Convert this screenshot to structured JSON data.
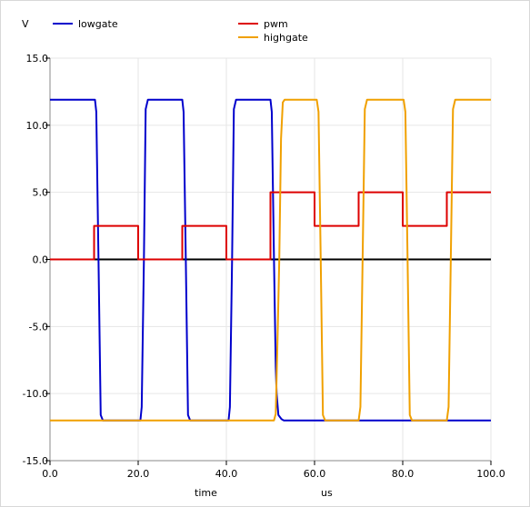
{
  "chart_data": {
    "type": "line",
    "title": "",
    "ylabel": "V",
    "xlabel": "time",
    "xunit": "us",
    "xlim": [
      0,
      100
    ],
    "ylim": [
      -15,
      15
    ],
    "xticks": [
      "0.0",
      "20.0",
      "40.0",
      "60.0",
      "80.0",
      "100.0"
    ],
    "yticks": [
      "15.0",
      "10.0",
      "5.0",
      "0.0",
      "-5.0",
      "-10.0",
      "-15.0"
    ],
    "xtick_values": [
      0,
      20,
      40,
      60,
      80,
      100
    ],
    "ytick_values": [
      15,
      10,
      5,
      0,
      -5,
      -10,
      -15
    ],
    "grid": true,
    "legend_placement": "top",
    "zero_line": true,
    "series": [
      {
        "name": "lowgate",
        "color": "#0000cc",
        "points": [
          [
            0,
            11.9
          ],
          [
            10.2,
            11.9
          ],
          [
            10.5,
            11
          ],
          [
            11,
            0
          ],
          [
            11.5,
            -11.6
          ],
          [
            12,
            -12
          ],
          [
            13.5,
            -12
          ],
          [
            14.2,
            -12
          ],
          [
            20.5,
            -12
          ],
          [
            20.8,
            -11
          ],
          [
            21.3,
            0
          ],
          [
            21.7,
            11.2
          ],
          [
            22.2,
            11.9
          ],
          [
            30,
            11.9
          ],
          [
            30.3,
            11
          ],
          [
            30.8,
            0
          ],
          [
            31.3,
            -11.6
          ],
          [
            31.8,
            -12
          ],
          [
            33,
            -12
          ],
          [
            40.5,
            -12
          ],
          [
            40.8,
            -11
          ],
          [
            41.3,
            0
          ],
          [
            41.7,
            11.2
          ],
          [
            42.2,
            11.9
          ],
          [
            50,
            11.9
          ],
          [
            50.3,
            11
          ],
          [
            50.8,
            0
          ],
          [
            51.2,
            -8
          ],
          [
            51.4,
            -10
          ],
          [
            51.8,
            -11.6
          ],
          [
            52.5,
            -11.9
          ],
          [
            53,
            -12
          ],
          [
            100,
            -12
          ]
        ]
      },
      {
        "name": "pwm",
        "color": "#dd0000",
        "points": [
          [
            0,
            0
          ],
          [
            10,
            0
          ],
          [
            10,
            2.5
          ],
          [
            20,
            2.5
          ],
          [
            20,
            0
          ],
          [
            30,
            0
          ],
          [
            30,
            2.5
          ],
          [
            40,
            2.5
          ],
          [
            40,
            0
          ],
          [
            50,
            0
          ],
          [
            50,
            5
          ],
          [
            60,
            5
          ],
          [
            60,
            2.5
          ],
          [
            70,
            2.5
          ],
          [
            70,
            5
          ],
          [
            80,
            5
          ],
          [
            80,
            2.5
          ],
          [
            90,
            2.5
          ],
          [
            90,
            5
          ],
          [
            100,
            5
          ]
        ]
      },
      {
        "name": "highgate",
        "color": "#f0a000",
        "points": [
          [
            0,
            -12
          ],
          [
            50.8,
            -12
          ],
          [
            51.2,
            -11.5
          ],
          [
            51.6,
            -6
          ],
          [
            52,
            0
          ],
          [
            52.4,
            9
          ],
          [
            52.8,
            11.7
          ],
          [
            53.2,
            11.9
          ],
          [
            60.5,
            11.9
          ],
          [
            60.9,
            11
          ],
          [
            61.4,
            0
          ],
          [
            61.9,
            -11.6
          ],
          [
            62.4,
            -12
          ],
          [
            70,
            -12
          ],
          [
            70.4,
            -11
          ],
          [
            70.9,
            0
          ],
          [
            71.4,
            11.2
          ],
          [
            71.9,
            11.9
          ],
          [
            80.2,
            11.9
          ],
          [
            80.6,
            11
          ],
          [
            81.1,
            0
          ],
          [
            81.6,
            -11.6
          ],
          [
            82.1,
            -12
          ],
          [
            90,
            -12
          ],
          [
            90.4,
            -11
          ],
          [
            90.9,
            0
          ],
          [
            91.4,
            11.2
          ],
          [
            91.9,
            11.9
          ],
          [
            100,
            11.9
          ]
        ]
      }
    ]
  }
}
